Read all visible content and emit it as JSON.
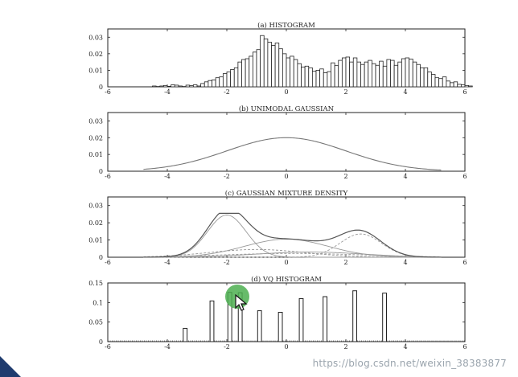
{
  "chart_data": [
    {
      "type": "bar",
      "title": "(a) HISTOGRAM",
      "xlim": [
        -6,
        6
      ],
      "ylim": [
        0,
        0.035
      ],
      "x_ticks": [
        -6,
        -4,
        -2,
        0,
        2,
        4,
        6
      ],
      "y_ticks": [
        0,
        0.01,
        0.02,
        0.03
      ],
      "y_tick_labels": [
        "0",
        "0.01",
        "0.02",
        "0.03"
      ],
      "bin_start": -4.5,
      "bin_width": 0.125,
      "values": [
        0.0005,
        0.0002,
        0.0005,
        0.0008,
        0.0003,
        0.0012,
        0.001,
        0.0005,
        0.0002,
        0.001,
        0.0007,
        0.0012,
        0.0005,
        0.002,
        0.003,
        0.0038,
        0.0042,
        0.0055,
        0.006,
        0.008,
        0.009,
        0.0105,
        0.0115,
        0.015,
        0.0165,
        0.017,
        0.0185,
        0.021,
        0.0225,
        0.031,
        0.029,
        0.027,
        0.025,
        0.0265,
        0.023,
        0.02,
        0.0175,
        0.0185,
        0.0165,
        0.014,
        0.012,
        0.0125,
        0.0115,
        0.0095,
        0.01,
        0.0108,
        0.0085,
        0.0092,
        0.0145,
        0.0128,
        0.016,
        0.0175,
        0.018,
        0.015,
        0.0175,
        0.015,
        0.0135,
        0.015,
        0.016,
        0.014,
        0.013,
        0.0155,
        0.0125,
        0.0165,
        0.016,
        0.013,
        0.015,
        0.017,
        0.0175,
        0.0168,
        0.015,
        0.0135,
        0.0115,
        0.0115,
        0.009,
        0.0075,
        0.0055,
        0.005,
        0.006,
        0.0035,
        0.0025,
        0.003,
        0.0015,
        0.0012,
        0.0008,
        0.0005
      ]
    },
    {
      "type": "line",
      "title": "(b) UNIMODAL GAUSSIAN",
      "xlim": [
        -6,
        6
      ],
      "ylim": [
        0,
        0.035
      ],
      "x_ticks": [
        -6,
        -4,
        -2,
        0,
        2,
        4,
        6
      ],
      "y_ticks": [
        0,
        0.01,
        0.02,
        0.03
      ],
      "y_tick_labels": [
        "0",
        "0.01",
        "0.02",
        "0.03"
      ],
      "series": [
        {
          "mean": 0.0,
          "std": 2.0,
          "peak": 0.02,
          "xrange": [
            -4.8,
            5.2
          ],
          "color": "#777777"
        }
      ]
    },
    {
      "type": "line",
      "title": "(c) GAUSSIAN MIXTURE DENSITY",
      "xlim": [
        -6,
        6
      ],
      "ylim": [
        0,
        0.035
      ],
      "x_ticks": [
        -6,
        -4,
        -2,
        0,
        2,
        4,
        6
      ],
      "y_ticks": [
        0,
        0.01,
        0.02,
        0.03
      ],
      "y_tick_labels": [
        "0",
        "0.01",
        "0.02",
        "0.03"
      ],
      "components": [
        {
          "mean": -2.0,
          "std": 0.65,
          "peak": 0.0245
        },
        {
          "mean": 2.5,
          "std": 0.7,
          "peak": 0.0135
        },
        {
          "mean": 0.0,
          "std": 1.4,
          "peak": 0.0105
        },
        {
          "mean": -1.0,
          "std": 1.6,
          "peak": 0.0045
        },
        {
          "mean": 0.8,
          "std": 1.8,
          "peak": 0.003
        },
        {
          "mean": 0.2,
          "std": 2.4,
          "peak": 0.0022
        }
      ],
      "xrange": [
        -4.8,
        5.2
      ],
      "mixture_color": "#555555",
      "component_color": "#999999"
    },
    {
      "type": "bar",
      "title": "(d) VQ HISTOGRAM",
      "xlim": [
        -6,
        6
      ],
      "ylim": [
        0,
        0.15
      ],
      "x_ticks": [
        -6,
        -4,
        -2,
        0,
        2,
        4,
        6
      ],
      "y_ticks": [
        0,
        0.05,
        0.1,
        0.15
      ],
      "y_tick_labels": [
        "0",
        "0.05",
        "0.1",
        "0.15"
      ],
      "x": [
        -3.4,
        -2.5,
        -1.9,
        -1.55,
        -0.9,
        -0.2,
        0.5,
        1.3,
        2.3,
        3.3
      ],
      "values": [
        0.034,
        0.104,
        0.126,
        0.125,
        0.079,
        0.075,
        0.11,
        0.115,
        0.13,
        0.124
      ],
      "bar_width": 0.13
    }
  ],
  "watermark": "https://blog.csdn.net/weixin_38383877"
}
